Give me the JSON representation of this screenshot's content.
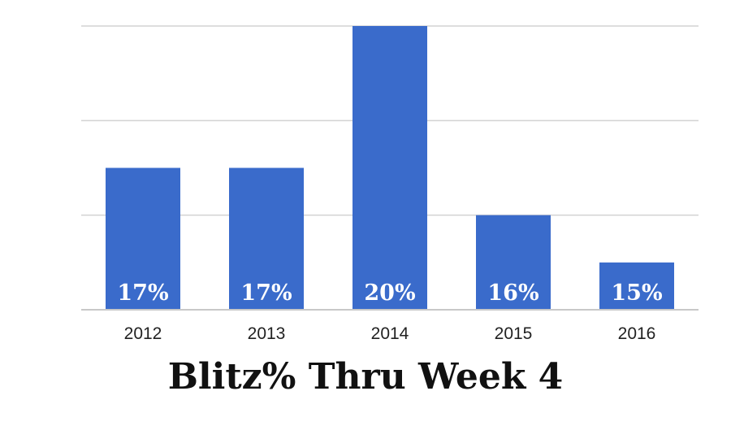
{
  "chart_data": {
    "type": "bar",
    "title": "Blitz% Thru Week 4",
    "xlabel": "",
    "ylabel": "",
    "categories": [
      "2012",
      "2013",
      "2014",
      "2015",
      "2016"
    ],
    "values": [
      17,
      17,
      20,
      16,
      15
    ],
    "data_labels": [
      "17%",
      "17%",
      "20%",
      "16%",
      "15%"
    ],
    "ylim": [
      14,
      20
    ],
    "grid": true,
    "legend": "none",
    "bar_color": "#3a6bcb"
  }
}
